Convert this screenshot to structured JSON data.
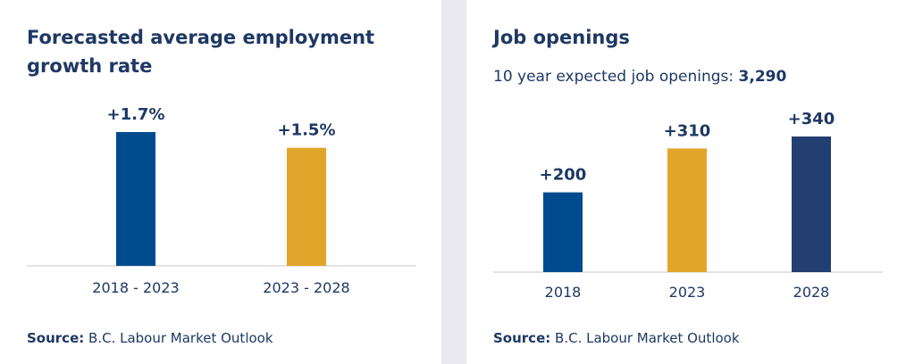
{
  "chart_data": [
    {
      "type": "bar",
      "title": "Forecasted average employment growth rate",
      "categories": [
        "2018 - 2023",
        "2023 - 2028"
      ],
      "values": [
        1.7,
        1.5
      ],
      "value_labels": [
        "+1.7%",
        "+1.5%"
      ],
      "colors": [
        "#004b8d",
        "#e2a52c"
      ],
      "source_label": "Source:",
      "source": "B.C. Labour Market Outlook"
    },
    {
      "type": "bar",
      "title": "Job openings",
      "subtitle": "10 year expected job openings:",
      "subtitle_value": "3,290",
      "categories": [
        "2018",
        "2023",
        "2028"
      ],
      "values": [
        200,
        310,
        340
      ],
      "value_labels": [
        "+200",
        "+310",
        "+340"
      ],
      "colors": [
        "#004b8d",
        "#e2a52c",
        "#233e70"
      ],
      "source_label": "Source:",
      "source": "B.C. Labour Market Outlook"
    }
  ]
}
